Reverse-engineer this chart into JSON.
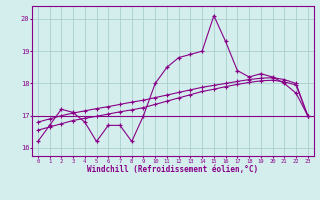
{
  "x": [
    0,
    1,
    2,
    3,
    4,
    5,
    6,
    7,
    8,
    9,
    10,
    11,
    12,
    13,
    14,
    15,
    16,
    17,
    18,
    19,
    20,
    21,
    22,
    23
  ],
  "y_main": [
    16.2,
    16.7,
    17.2,
    17.1,
    16.8,
    16.2,
    16.7,
    16.7,
    16.2,
    17.0,
    18.0,
    18.5,
    18.8,
    18.9,
    19.0,
    20.1,
    19.3,
    18.4,
    18.2,
    18.3,
    18.2,
    18.0,
    17.7,
    17.0
  ],
  "y_trend1": [
    16.55,
    16.65,
    16.75,
    16.85,
    16.92,
    16.98,
    17.05,
    17.12,
    17.18,
    17.25,
    17.35,
    17.45,
    17.55,
    17.65,
    17.75,
    17.82,
    17.9,
    17.97,
    18.03,
    18.08,
    18.1,
    18.05,
    17.95,
    17.0
  ],
  "y_trend2": [
    16.8,
    16.9,
    17.0,
    17.08,
    17.15,
    17.22,
    17.28,
    17.35,
    17.42,
    17.48,
    17.56,
    17.64,
    17.72,
    17.8,
    17.88,
    17.94,
    18.0,
    18.06,
    18.12,
    18.16,
    18.18,
    18.12,
    18.0,
    17.0
  ],
  "color": "#880088",
  "background_color": "#d4eeed",
  "grid_color": "#a8d0cc",
  "xlabel": "Windchill (Refroidissement éolien,°C)",
  "ylim": [
    15.75,
    20.4
  ],
  "xlim": [
    -0.5,
    23.5
  ],
  "yticks": [
    16,
    17,
    18,
    19,
    20
  ],
  "xticks": [
    0,
    1,
    2,
    3,
    4,
    5,
    6,
    7,
    8,
    9,
    10,
    11,
    12,
    13,
    14,
    15,
    16,
    17,
    18,
    19,
    20,
    21,
    22,
    23
  ],
  "hline_y": 17.0,
  "fig_width": 3.2,
  "fig_height": 2.0,
  "dpi": 100
}
